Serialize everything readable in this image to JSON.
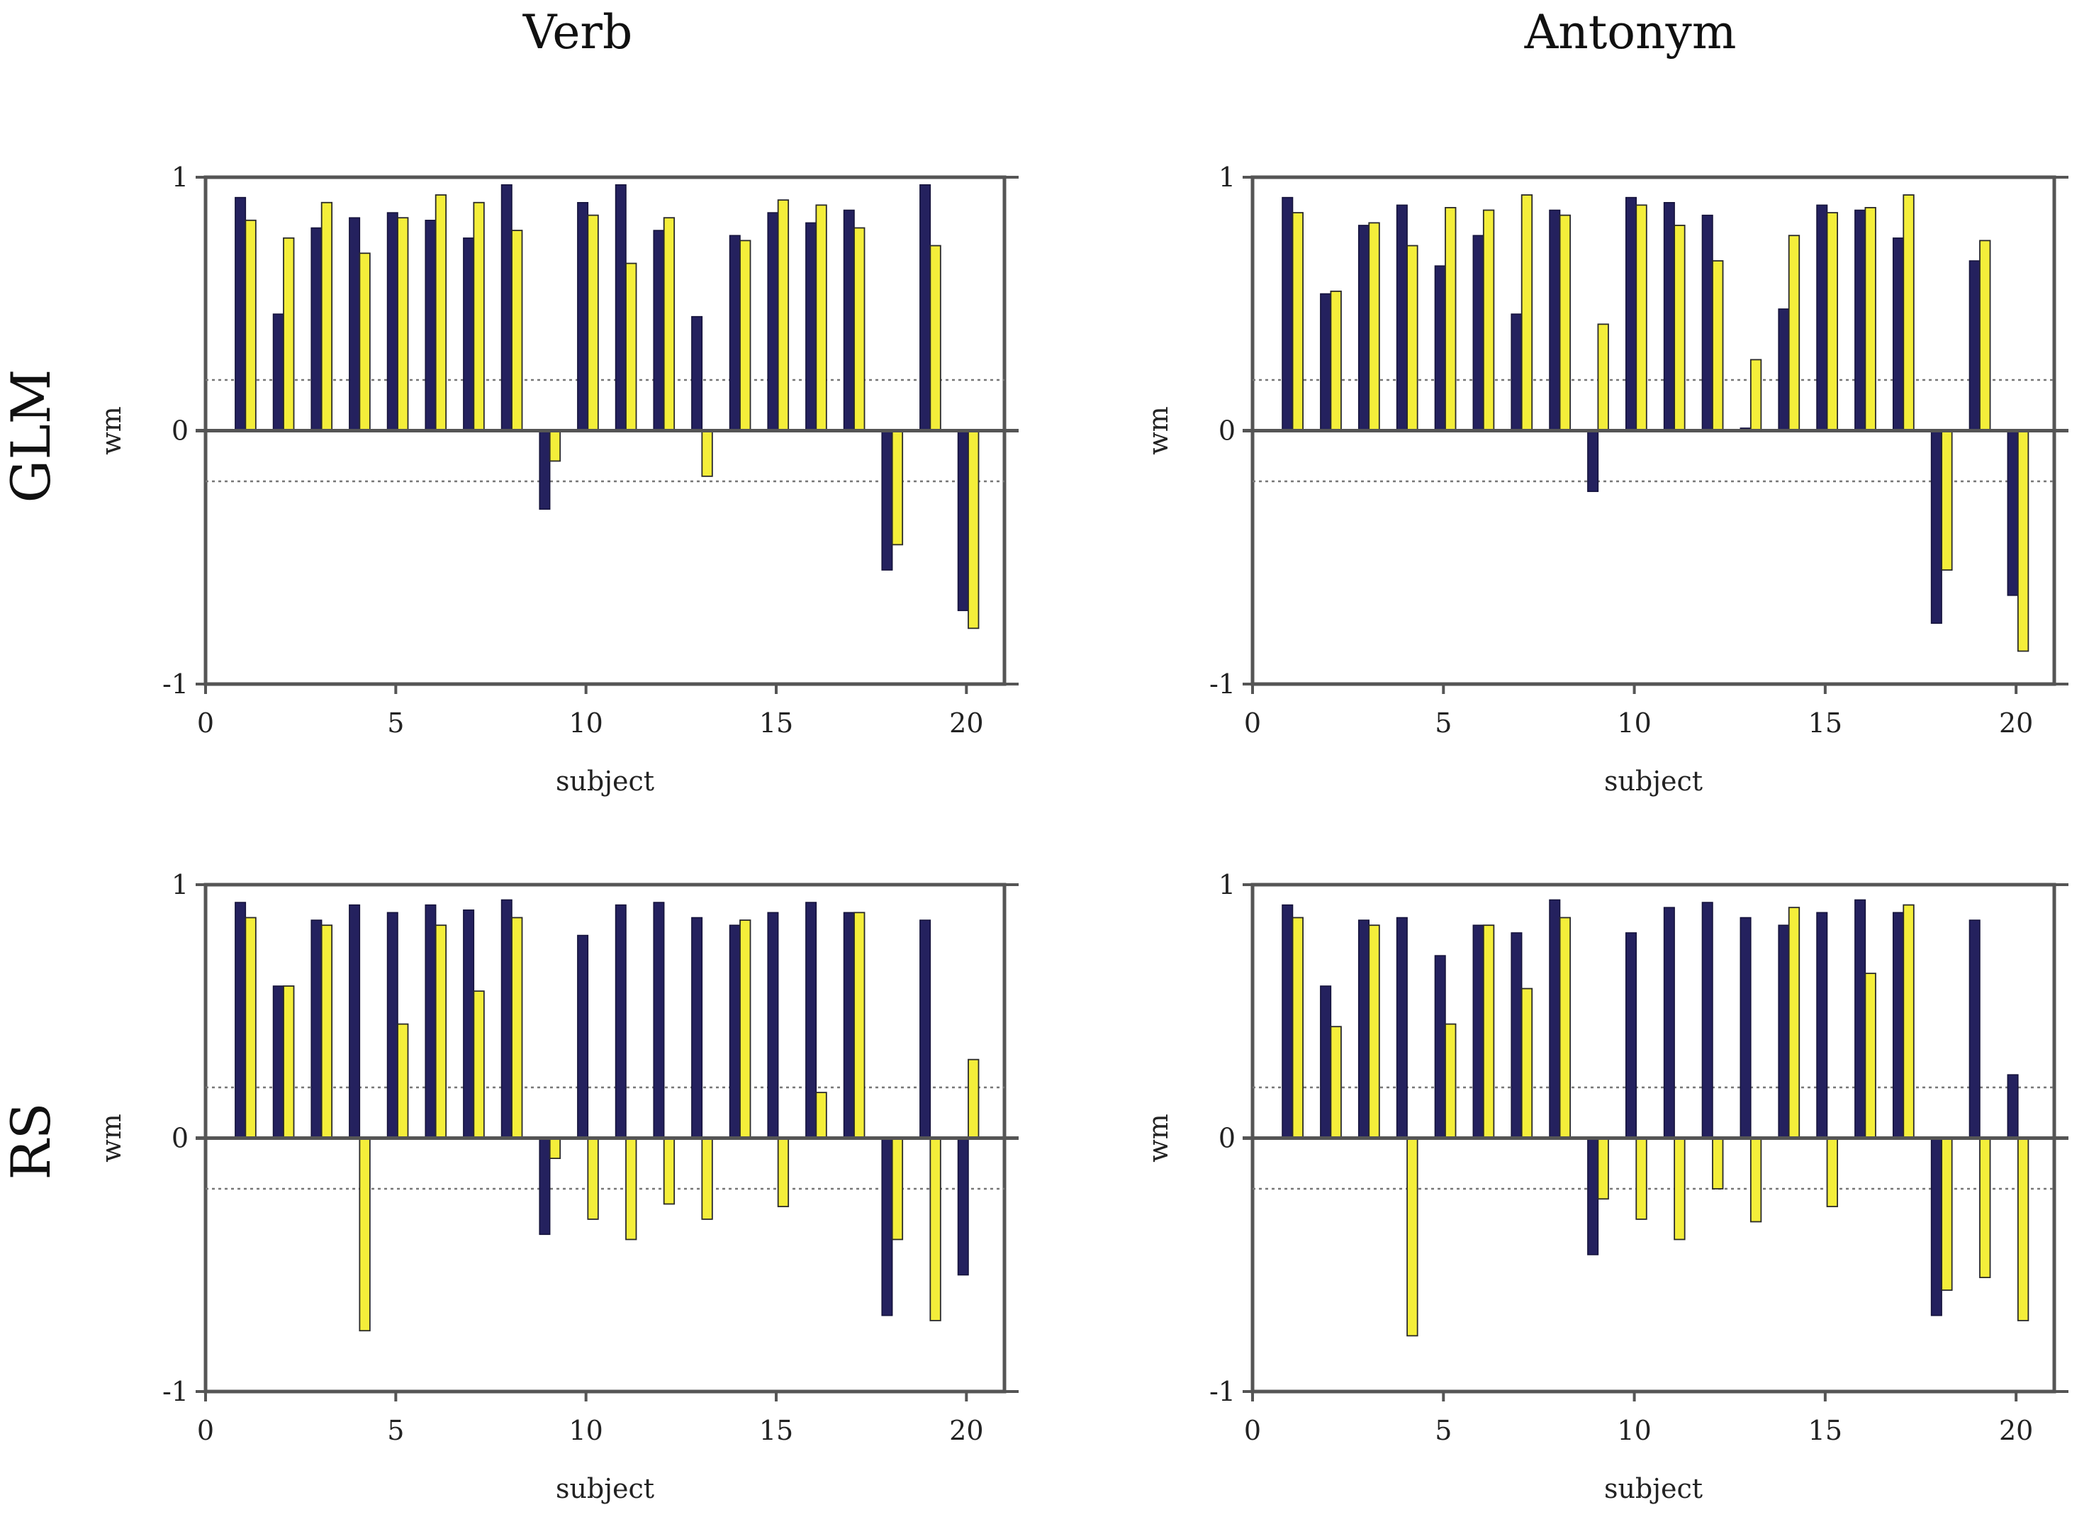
{
  "col_titles": [
    "Verb",
    "Antonym"
  ],
  "row_labels": [
    "GLM",
    "RS"
  ],
  "colors": {
    "series_1": "#24215e",
    "series_2": "#f4ee3a"
  },
  "chart_data": [
    {
      "type": "bar",
      "row": "GLM",
      "col": "Verb",
      "xlabel": "subject",
      "ylabel": "wm",
      "xlim": [
        0,
        21
      ],
      "ylim": [
        -1,
        1
      ],
      "xticks": [
        0,
        5,
        10,
        15,
        20
      ],
      "yticks": [
        -1,
        0,
        1
      ],
      "x_tick_labels": [
        "0",
        "5",
        "10",
        "15",
        "20"
      ],
      "y_tick_labels": [
        "-1",
        "0",
        "1"
      ],
      "thresholds": [
        0.2,
        -0.2
      ],
      "x": [
        1,
        2,
        3,
        4,
        5,
        6,
        7,
        8,
        9,
        10,
        11,
        12,
        13,
        14,
        15,
        16,
        17,
        18,
        19,
        20
      ],
      "series": [
        {
          "values": [
            0.92,
            0.46,
            0.8,
            0.84,
            0.86,
            0.83,
            0.76,
            0.97,
            -0.31,
            0.9,
            0.97,
            0.79,
            0.45,
            0.77,
            0.86,
            0.82,
            0.87,
            -0.55,
            0.97,
            -0.71
          ]
        },
        {
          "values": [
            0.83,
            0.76,
            0.9,
            0.7,
            0.84,
            0.93,
            0.9,
            0.79,
            -0.12,
            0.85,
            0.66,
            0.84,
            -0.18,
            0.75,
            0.91,
            0.89,
            0.8,
            -0.45,
            0.73,
            -0.78
          ]
        }
      ]
    },
    {
      "type": "bar",
      "row": "GLM",
      "col": "Antonym",
      "xlabel": "subject",
      "ylabel": "wm",
      "xlim": [
        0,
        21
      ],
      "ylim": [
        -1,
        1
      ],
      "xticks": [
        0,
        5,
        10,
        15,
        20
      ],
      "yticks": [
        -1,
        0,
        1
      ],
      "x_tick_labels": [
        "0",
        "5",
        "10",
        "15",
        "20"
      ],
      "y_tick_labels": [
        "-1",
        "0",
        "1"
      ],
      "thresholds": [
        0.2,
        -0.2
      ],
      "x": [
        1,
        2,
        3,
        4,
        5,
        6,
        7,
        8,
        9,
        10,
        11,
        12,
        13,
        14,
        15,
        16,
        17,
        18,
        19,
        20
      ],
      "series": [
        {
          "values": [
            0.92,
            0.54,
            0.81,
            0.89,
            0.65,
            0.77,
            0.46,
            0.87,
            -0.24,
            0.92,
            0.9,
            0.85,
            0.01,
            0.48,
            0.89,
            0.87,
            0.76,
            -0.76,
            0.67,
            -0.65
          ]
        },
        {
          "values": [
            0.86,
            0.55,
            0.82,
            0.73,
            0.88,
            0.87,
            0.93,
            0.85,
            0.42,
            0.89,
            0.81,
            0.67,
            0.28,
            0.77,
            0.86,
            0.88,
            0.93,
            -0.55,
            0.75,
            -0.87
          ]
        }
      ]
    },
    {
      "type": "bar",
      "row": "RS",
      "col": "Verb",
      "xlabel": "subject",
      "ylabel": "wm",
      "xlim": [
        0,
        21
      ],
      "ylim": [
        -1,
        1
      ],
      "xticks": [
        0,
        5,
        10,
        15,
        20
      ],
      "yticks": [
        -1,
        0,
        1
      ],
      "x_tick_labels": [
        "0",
        "5",
        "10",
        "15",
        "20"
      ],
      "y_tick_labels": [
        "-1",
        "0",
        "1"
      ],
      "thresholds": [
        0.2,
        -0.2
      ],
      "x": [
        1,
        2,
        3,
        4,
        5,
        6,
        7,
        8,
        9,
        10,
        11,
        12,
        13,
        14,
        15,
        16,
        17,
        18,
        19,
        20
      ],
      "series": [
        {
          "values": [
            0.93,
            0.6,
            0.86,
            0.92,
            0.89,
            0.92,
            0.9,
            0.94,
            -0.38,
            0.8,
            0.92,
            0.93,
            0.87,
            0.84,
            0.89,
            0.93,
            0.89,
            -0.7,
            0.86,
            -0.54
          ]
        },
        {
          "values": [
            0.87,
            0.6,
            0.84,
            -0.76,
            0.45,
            0.84,
            0.58,
            0.87,
            -0.08,
            -0.32,
            -0.4,
            -0.26,
            -0.32,
            0.86,
            -0.27,
            0.18,
            0.89,
            -0.4,
            -0.72,
            0.31
          ]
        }
      ]
    },
    {
      "type": "bar",
      "row": "RS",
      "col": "Antonym",
      "xlabel": "subject",
      "ylabel": "wm",
      "xlim": [
        0,
        21
      ],
      "ylim": [
        -1,
        1
      ],
      "xticks": [
        0,
        5,
        10,
        15,
        20
      ],
      "yticks": [
        -1,
        0,
        1
      ],
      "x_tick_labels": [
        "0",
        "5",
        "10",
        "15",
        "20"
      ],
      "y_tick_labels": [
        "-1",
        "0",
        "1"
      ],
      "thresholds": [
        0.2,
        -0.2
      ],
      "x": [
        1,
        2,
        3,
        4,
        5,
        6,
        7,
        8,
        9,
        10,
        11,
        12,
        13,
        14,
        15,
        16,
        17,
        18,
        19,
        20
      ],
      "series": [
        {
          "values": [
            0.92,
            0.6,
            0.86,
            0.87,
            0.72,
            0.84,
            0.81,
            0.94,
            -0.46,
            0.81,
            0.91,
            0.93,
            0.87,
            0.84,
            0.89,
            0.94,
            0.89,
            -0.7,
            0.86,
            0.25
          ]
        },
        {
          "values": [
            0.87,
            0.44,
            0.84,
            -0.78,
            0.45,
            0.84,
            0.59,
            0.87,
            -0.24,
            -0.32,
            -0.4,
            -0.2,
            -0.33,
            0.91,
            -0.27,
            0.65,
            0.92,
            -0.6,
            -0.55,
            -0.72
          ]
        }
      ]
    }
  ]
}
